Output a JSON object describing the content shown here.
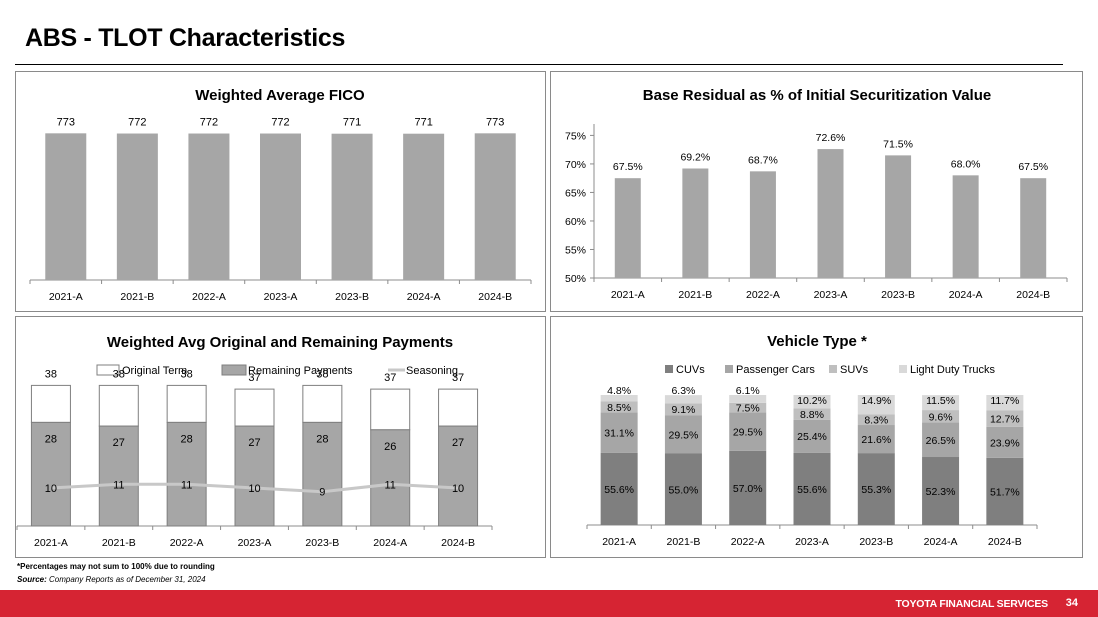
{
  "page": {
    "title": "ABS - TLOT Characteristics",
    "footnote": "*Percentages may not sum to 100% due to rounding",
    "source_label": "Source:",
    "source_text": " Company Reports as of December 31, 2024",
    "footer_brand": "TOYOTA FINANCIAL SERVICES",
    "page_number": "34",
    "colors": {
      "footer_red": "#d62433",
      "bar_gray": "#a6a6a6"
    }
  },
  "chart_data": [
    {
      "id": "fico",
      "type": "bar",
      "title": "Weighted Average FICO",
      "categories": [
        "2021-A",
        "2021-B",
        "2022-A",
        "2023-A",
        "2023-B",
        "2024-A",
        "2024-B"
      ],
      "values": [
        773,
        772,
        772,
        772,
        771,
        771,
        773
      ],
      "data_labels": [
        "773",
        "772",
        "772",
        "772",
        "771",
        "771",
        "773"
      ],
      "xlabel": "",
      "ylabel": "",
      "grid": false,
      "y_axis_visible": false
    },
    {
      "id": "residual",
      "type": "bar",
      "title": "Base Residual as % of Initial Securitization Value",
      "categories": [
        "2021-A",
        "2021-B",
        "2022-A",
        "2023-A",
        "2023-B",
        "2024-A",
        "2024-B"
      ],
      "values": [
        67.5,
        69.2,
        68.7,
        72.6,
        71.5,
        68.0,
        67.5
      ],
      "data_labels": [
        "67.5%",
        "69.2%",
        "68.7%",
        "72.6%",
        "71.5%",
        "68.0%",
        "67.5%"
      ],
      "ylim": [
        50,
        77
      ],
      "yticks": [
        50,
        55,
        60,
        65,
        70,
        75
      ],
      "ytick_labels": [
        "50%",
        "55%",
        "60%",
        "65%",
        "70%",
        "75%"
      ],
      "xlabel": "",
      "ylabel": "",
      "grid": false
    },
    {
      "id": "payments",
      "type": "bar",
      "title": "Weighted Avg Original and Remaining Payments",
      "categories": [
        "2021-A",
        "2021-B",
        "2022-A",
        "2023-A",
        "2023-B",
        "2024-A",
        "2024-B"
      ],
      "series": [
        {
          "name": "Original Term",
          "kind": "bar",
          "values": [
            38,
            38,
            38,
            37,
            38,
            37,
            37
          ],
          "color": "#ffffff"
        },
        {
          "name": "Remaining Payments",
          "kind": "bar",
          "values": [
            28,
            27,
            28,
            27,
            28,
            26,
            27
          ],
          "color": "#a6a6a6"
        },
        {
          "name": "Seasoning",
          "kind": "line",
          "values": [
            10,
            11,
            11,
            10,
            9,
            11,
            10
          ],
          "color": "#c8c8c8"
        }
      ],
      "legend": "top",
      "xlabel": "",
      "ylabel": "",
      "grid": false
    },
    {
      "id": "vehicle",
      "type": "bar",
      "stacked": true,
      "title": "Vehicle Type *",
      "categories": [
        "2021-A",
        "2021-B",
        "2022-A",
        "2023-A",
        "2023-B",
        "2024-A",
        "2024-B"
      ],
      "series": [
        {
          "name": "CUVs",
          "values": [
            55.6,
            55.0,
            57.0,
            55.6,
            55.3,
            52.3,
            51.7
          ],
          "color": "#7f7f7f"
        },
        {
          "name": "Passenger Cars",
          "values": [
            31.1,
            29.5,
            29.5,
            25.4,
            21.6,
            26.5,
            23.9
          ],
          "color": "#a6a6a6"
        },
        {
          "name": "SUVs",
          "values": [
            8.5,
            9.1,
            7.5,
            8.8,
            8.3,
            9.6,
            12.7
          ],
          "color": "#bfbfbf"
        },
        {
          "name": "Light Duty Trucks",
          "values": [
            4.8,
            6.3,
            6.1,
            10.2,
            14.9,
            11.5,
            11.7
          ],
          "color": "#d9d9d9"
        }
      ],
      "value_suffix": "%",
      "legend": "top",
      "xlabel": "",
      "ylabel": "",
      "grid": false
    }
  ]
}
